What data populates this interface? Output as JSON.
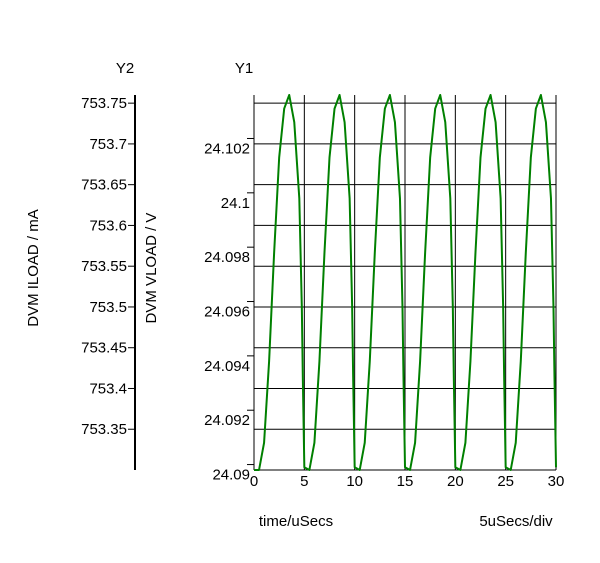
{
  "chart_data": {
    "type": "line",
    "y2_axis": {
      "header": "Y2",
      "label": "DVM ILOAD / mA",
      "ticks": [
        "753.75",
        "753.7",
        "753.65",
        "753.6",
        "753.55",
        "753.5",
        "753.45",
        "753.4",
        "753.35"
      ],
      "range": [
        753.3,
        753.76
      ]
    },
    "y1_axis": {
      "header": "Y1",
      "label": "DVM VLOAD / V",
      "ticks": [
        "24.102",
        "24.1",
        "24.098",
        "24.096",
        "24.094",
        "24.092",
        "24.09"
      ],
      "range": [
        24.0898,
        24.1036
      ]
    },
    "x_axis": {
      "label": "time/uSecs",
      "ticks": [
        "0",
        "5",
        "10",
        "15",
        "20",
        "25",
        "30"
      ],
      "range": [
        0,
        30
      ],
      "scale_note": "5uSecs/div"
    },
    "grid": true,
    "series": [
      {
        "color": "#008000",
        "period_us": 5,
        "peak_v": 24.1036,
        "trough_v": 24.0898,
        "points": [
          [
            0.0,
            24.0898
          ],
          [
            0.5,
            24.0898
          ],
          [
            1.0,
            24.0908
          ],
          [
            1.5,
            24.0938
          ],
          [
            2.0,
            24.0978
          ],
          [
            2.5,
            24.1013
          ],
          [
            3.0,
            24.1031
          ],
          [
            3.5,
            24.1036
          ],
          [
            4.0,
            24.1026
          ],
          [
            4.5,
            24.0998
          ],
          [
            4.75,
            24.0958
          ],
          [
            4.85,
            24.0932
          ],
          [
            5.0,
            24.0899
          ],
          [
            5.5,
            24.0898
          ],
          [
            6.0,
            24.0908
          ],
          [
            6.5,
            24.0938
          ],
          [
            7.0,
            24.0978
          ],
          [
            7.5,
            24.1013
          ],
          [
            8.0,
            24.1031
          ],
          [
            8.5,
            24.1036
          ],
          [
            9.0,
            24.1026
          ],
          [
            9.5,
            24.0998
          ],
          [
            9.75,
            24.0958
          ],
          [
            9.85,
            24.0932
          ],
          [
            10.0,
            24.0899
          ],
          [
            10.5,
            24.0898
          ],
          [
            11.0,
            24.0908
          ],
          [
            11.5,
            24.0938
          ],
          [
            12.0,
            24.0978
          ],
          [
            12.5,
            24.1013
          ],
          [
            13.0,
            24.1031
          ],
          [
            13.5,
            24.1036
          ],
          [
            14.0,
            24.1026
          ],
          [
            14.5,
            24.0998
          ],
          [
            14.75,
            24.0958
          ],
          [
            14.85,
            24.0932
          ],
          [
            15.0,
            24.0899
          ],
          [
            15.5,
            24.0898
          ],
          [
            16.0,
            24.0908
          ],
          [
            16.5,
            24.0938
          ],
          [
            17.0,
            24.0978
          ],
          [
            17.5,
            24.1013
          ],
          [
            18.0,
            24.1031
          ],
          [
            18.5,
            24.1036
          ],
          [
            19.0,
            24.1026
          ],
          [
            19.5,
            24.0998
          ],
          [
            19.75,
            24.0958
          ],
          [
            19.85,
            24.0932
          ],
          [
            20.0,
            24.0899
          ],
          [
            20.5,
            24.0898
          ],
          [
            21.0,
            24.0908
          ],
          [
            21.5,
            24.0938
          ],
          [
            22.0,
            24.0978
          ],
          [
            22.5,
            24.1013
          ],
          [
            23.0,
            24.1031
          ],
          [
            23.5,
            24.1036
          ],
          [
            24.0,
            24.1026
          ],
          [
            24.5,
            24.0998
          ],
          [
            24.75,
            24.0958
          ],
          [
            24.85,
            24.0932
          ],
          [
            25.0,
            24.0899
          ],
          [
            25.5,
            24.0898
          ],
          [
            26.0,
            24.0908
          ],
          [
            26.5,
            24.0938
          ],
          [
            27.0,
            24.0978
          ],
          [
            27.5,
            24.1013
          ],
          [
            28.0,
            24.1031
          ],
          [
            28.5,
            24.1036
          ],
          [
            29.0,
            24.1026
          ],
          [
            29.5,
            24.0998
          ],
          [
            29.75,
            24.0958
          ],
          [
            29.85,
            24.0932
          ],
          [
            30.0,
            24.0899
          ]
        ]
      }
    ]
  }
}
